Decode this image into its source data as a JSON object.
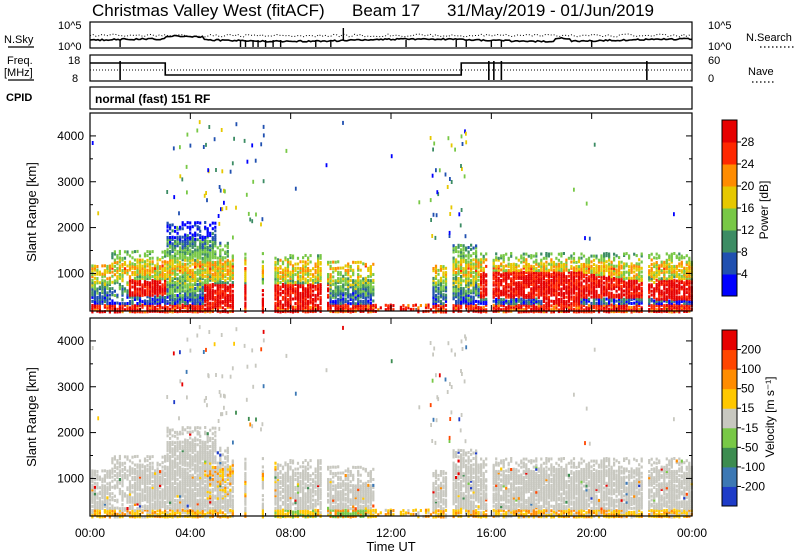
{
  "header": {
    "station": "Christmas Valley West (fitACF)",
    "beam": "Beam 17",
    "date_range": "31/May/2019 - 01/Jun/2019"
  },
  "summary_panels": {
    "nsky_label": "N.Sky",
    "nsky_ticks": [
      "10^5",
      "10^0"
    ],
    "nsearch_label": "N.Search",
    "nsearch_ticks": [
      "10^5",
      "10^0"
    ],
    "freq_label_line1": "Freq.",
    "freq_label_line2": "[MHz]",
    "freq_ticks": [
      "18",
      "8"
    ],
    "nave_label": "Nave",
    "nave_ticks": [
      "60",
      "0"
    ],
    "cpid_label": "CPID",
    "cpid_value": "normal (fast) 151 RF"
  },
  "colors": {
    "frame": "#000000",
    "velocity_gray": "#c8c8c0"
  },
  "chart_data": [
    {
      "type": "heatmap",
      "name": "power",
      "ylabel": "Slant Range [km]",
      "yticks": [
        "1000",
        "2000",
        "3000",
        "4000"
      ],
      "ylim": [
        180,
        4500
      ],
      "xlim": [
        0,
        24
      ],
      "colorbar": {
        "label": "Power [dB]",
        "ticks": [
          "4",
          "8",
          "12",
          "16",
          "20",
          "24",
          "28"
        ],
        "colors": [
          "#0000ff",
          "#2050b0",
          "#3c8c64",
          "#78c846",
          "#e6c800",
          "#ff8c00",
          "#ff2800",
          "#e60000"
        ]
      }
    },
    {
      "type": "heatmap",
      "name": "velocity",
      "ylabel": "Slant Range [km]",
      "yticks": [
        "1000",
        "2000",
        "3000",
        "4000"
      ],
      "ylim": [
        180,
        4500
      ],
      "xlim": [
        0,
        24
      ],
      "xlabel": "Time UT",
      "xticks": [
        "00:00",
        "04:00",
        "08:00",
        "12:00",
        "16:00",
        "20:00",
        "00:00"
      ],
      "colorbar": {
        "label": "Velocity [m s⁻¹]",
        "ticks": [
          "200",
          "100",
          "50",
          "15",
          "-15",
          "-50",
          "-100",
          "-200"
        ],
        "colors": [
          "#1e3cc8",
          "#3c78b4",
          "#3c8c50",
          "#78c846",
          "#c8c8c0",
          "#ffc800",
          "#ff8c00",
          "#ff4600",
          "#e60000"
        ]
      }
    }
  ]
}
